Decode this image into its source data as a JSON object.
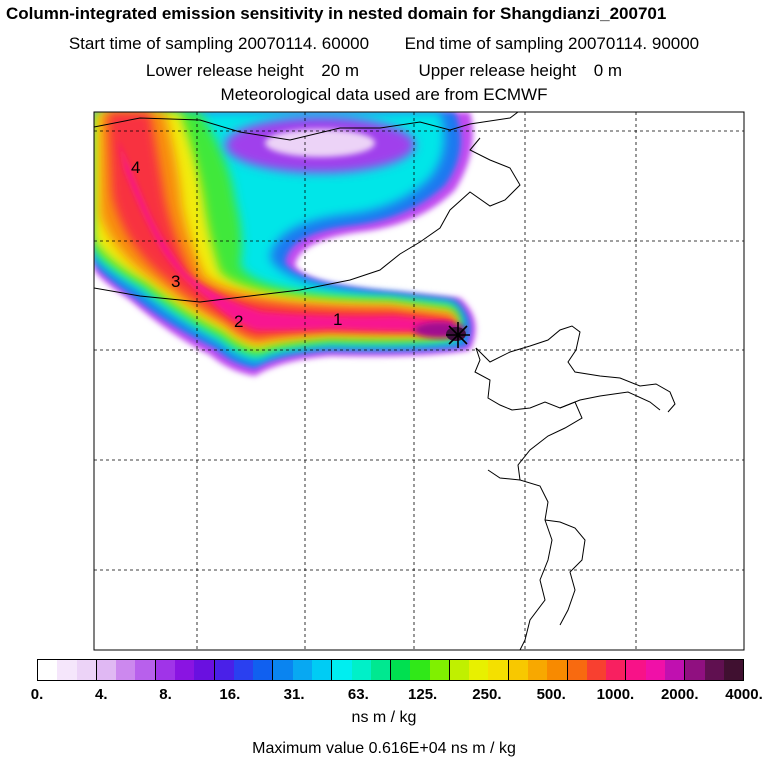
{
  "header": {
    "title": "Column-integrated emission sensitivity in nested domain for Shangdianzi_200701",
    "start_label": "Start time of sampling",
    "start_value": "20070114. 60000",
    "end_label": "End time of sampling",
    "end_value": "20070114. 90000",
    "lower_label": "Lower release height",
    "lower_value": "20 m",
    "upper_label": "Upper release height",
    "upper_value": "0 m",
    "met_line": "Meteorological data used are from ECMWF"
  },
  "map": {
    "plume_labels": [
      "1",
      "2",
      "3",
      "4"
    ],
    "receptor": "Shangdianzi"
  },
  "colorbar": {
    "ticks": [
      "0.",
      "4.",
      "8.",
      "16.",
      "31.",
      "63.",
      "125.",
      "250.",
      "500.",
      "1000.",
      "2000.",
      "4000."
    ],
    "colors": [
      "#ffffff",
      "#f5e6fb",
      "#ecd3f7",
      "#e0b8f3",
      "#cc88ee",
      "#b860ec",
      "#a034e8",
      "#8a14e2",
      "#6a10e0",
      "#4a20e8",
      "#2a40f0",
      "#1060f0",
      "#0a84f0",
      "#08a8f2",
      "#00ccf4",
      "#00eef0",
      "#00f0c8",
      "#00e890",
      "#00e050",
      "#30e818",
      "#80f000",
      "#c0f000",
      "#e8f000",
      "#f4e000",
      "#f8c800",
      "#f8a800",
      "#f88a00",
      "#f86a10",
      "#f84030",
      "#f82060",
      "#f81288",
      "#f010a8",
      "#c010b0",
      "#901080",
      "#601050",
      "#401030"
    ],
    "unit": "ns m / kg"
  },
  "max_value_text": "Maximum value  0.616E+04 ns m / kg"
}
